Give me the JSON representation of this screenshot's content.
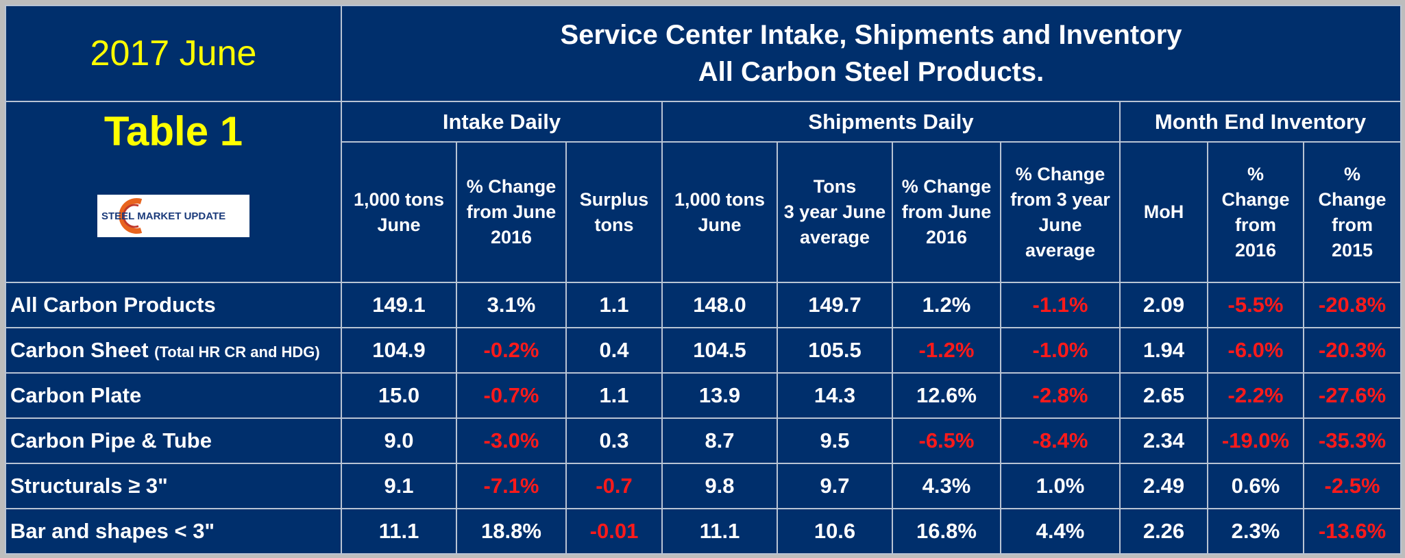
{
  "header": {
    "date": "2017 June",
    "table_label": "Table 1",
    "title_line1": "Service Center Intake, Shipments and Inventory",
    "title_line2": "All Carbon Steel Products.",
    "logo_text": "STEEL MARKET UPDATE"
  },
  "groups": {
    "intake": "Intake Daily",
    "shipments": "Shipments Daily",
    "inventory": "Month End Inventory"
  },
  "columns": [
    [
      "1,000 tons",
      "June"
    ],
    [
      "% Change",
      "from June",
      "2016"
    ],
    [
      "Surplus",
      "tons"
    ],
    [
      "1,000 tons",
      "June"
    ],
    [
      "Tons",
      "3 year June",
      "average"
    ],
    [
      "% Change",
      "from June",
      "2016"
    ],
    [
      "% Change",
      "from 3 year",
      "June",
      "average"
    ],
    [
      "MoH"
    ],
    [
      "%",
      "Change",
      "from",
      "2016"
    ],
    [
      "%",
      "Change",
      "from",
      "2015"
    ]
  ],
  "rows": [
    {
      "label": "All Carbon Products",
      "sub": "",
      "values": [
        "149.1",
        "3.1%",
        "1.1",
        "148.0",
        "149.7",
        "1.2%",
        "-1.1%",
        "2.09",
        "-5.5%",
        "-20.8%"
      ]
    },
    {
      "label": "Carbon Sheet ",
      "sub": "(Total HR CR and HDG)",
      "values": [
        "104.9",
        "-0.2%",
        "0.4",
        "104.5",
        "105.5",
        "-1.2%",
        "-1.0%",
        "1.94",
        "-6.0%",
        "-20.3%"
      ]
    },
    {
      "label": "Carbon Plate",
      "sub": "",
      "values": [
        "15.0",
        "-0.7%",
        "1.1",
        "13.9",
        "14.3",
        "12.6%",
        "-2.8%",
        "2.65",
        "-2.2%",
        "-27.6%"
      ]
    },
    {
      "label": "Carbon Pipe & Tube",
      "sub": "",
      "values": [
        "9.0",
        "-3.0%",
        "0.3",
        "8.7",
        "9.5",
        "-6.5%",
        "-8.4%",
        "2.34",
        "-19.0%",
        "-35.3%"
      ]
    },
    {
      "label": "Structurals ≥ 3\"",
      "sub": "",
      "values": [
        "9.1",
        "-7.1%",
        "-0.7",
        "9.8",
        "9.7",
        "4.3%",
        "1.0%",
        "2.49",
        "0.6%",
        "-2.5%"
      ]
    },
    {
      "label": "Bar and shapes < 3\"",
      "sub": "",
      "values": [
        "11.1",
        "18.8%",
        "-0.01",
        "11.1",
        "10.6",
        "16.8%",
        "4.4%",
        "2.26",
        "2.3%",
        "-13.6%"
      ]
    }
  ],
  "colors": {
    "background": "#002f6c",
    "negative": "#ff1a1a",
    "highlight": "#ffff00",
    "grid": "#b9c4d4"
  }
}
